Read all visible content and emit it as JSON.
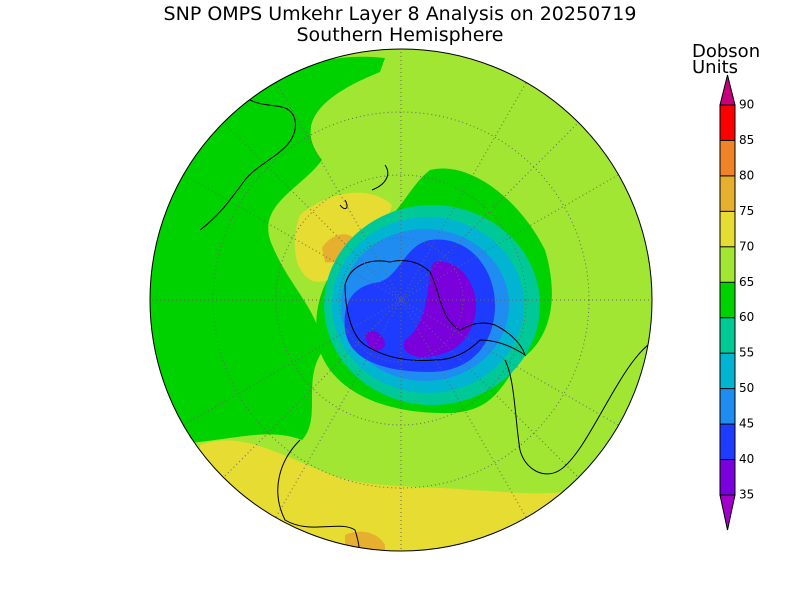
{
  "header": {
    "title": "SNP OMPS Umkehr Layer 8 Analysis on 20250719",
    "subtitle": "Southern Hemisphere"
  },
  "colorbar": {
    "label_lines": [
      "Dobson",
      "Units"
    ],
    "ticks": [
      35,
      40,
      45,
      50,
      55,
      60,
      65,
      70,
      75,
      80,
      85,
      90
    ],
    "colors": [
      "#7a00dc",
      "#1e3cff",
      "#1e8cf0",
      "#00b4d2",
      "#00c896",
      "#00d200",
      "#a0e632",
      "#e6dc32",
      "#e6af2d",
      "#f08228",
      "#fa0000"
    ],
    "under_color": "#a000c8",
    "over_color": "#c8007c"
  }
}
